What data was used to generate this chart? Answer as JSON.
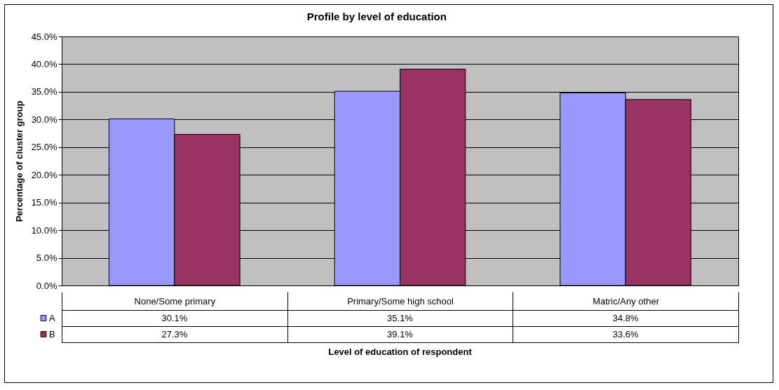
{
  "chart_data": {
    "type": "bar",
    "title": "Profile by level of education",
    "xlabel": "Level of education of respondent",
    "ylabel": "Percentage of cluster group",
    "categories": [
      "None/Some primary",
      "Primary/Some high school",
      "Matric/Any other"
    ],
    "series": [
      {
        "name": "A",
        "color": "#9999ff",
        "values": [
          30.1,
          35.1,
          34.8
        ],
        "value_labels": [
          "30.1%",
          "35.1%",
          "34.8%"
        ]
      },
      {
        "name": "B",
        "color": "#993366",
        "values": [
          27.3,
          39.1,
          33.6
        ],
        "value_labels": [
          "27.3%",
          "39.1%",
          "33.6%"
        ]
      }
    ],
    "ylim": [
      0,
      45
    ],
    "yticks": [
      {
        "value": 0,
        "label": "0.0%"
      },
      {
        "value": 5,
        "label": "5.0%"
      },
      {
        "value": 10,
        "label": "10.0%"
      },
      {
        "value": 15,
        "label": "15.0%"
      },
      {
        "value": 20,
        "label": "20.0%"
      },
      {
        "value": 25,
        "label": "25.0%"
      },
      {
        "value": 30,
        "label": "30.0%"
      },
      {
        "value": 35,
        "label": "35.0%"
      },
      {
        "value": 40,
        "label": "40.0%"
      },
      {
        "value": 45,
        "label": "45.0%"
      }
    ],
    "grid": "y",
    "legend": "bottom"
  }
}
